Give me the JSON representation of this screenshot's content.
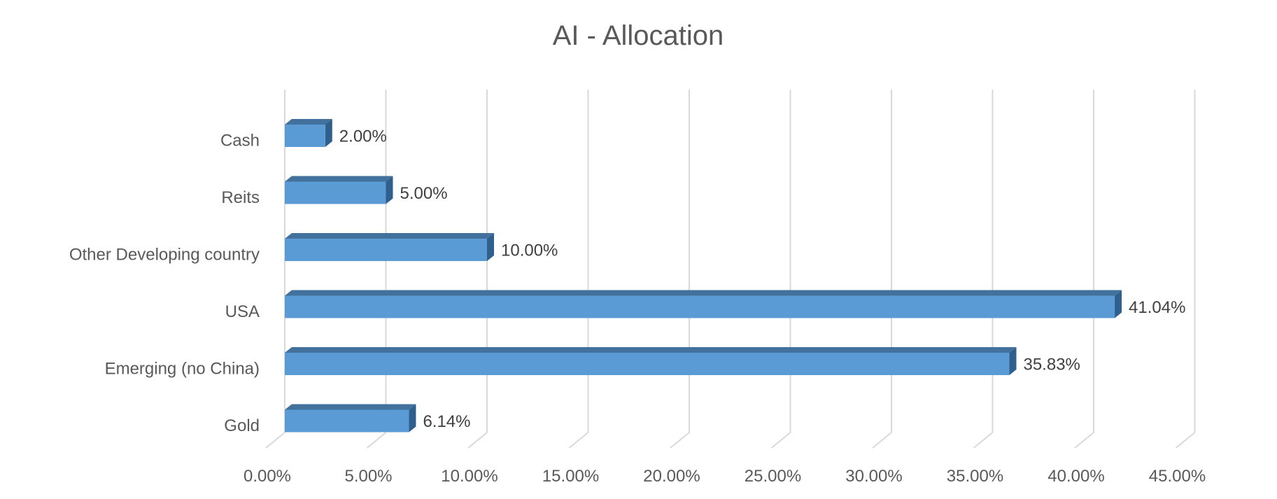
{
  "chart_data": {
    "type": "bar",
    "orientation": "horizontal",
    "style": "3d-clustered-bar",
    "title": "AI - Allocation",
    "categories": [
      "Cash",
      "Reits",
      "Other Developing country",
      "USA",
      "Emerging (no China)",
      "Gold"
    ],
    "values": [
      2.0,
      5.0,
      10.0,
      41.04,
      35.83,
      6.14
    ],
    "value_labels": [
      "2.00%",
      "5.00%",
      "10.00%",
      "41.04%",
      "35.83%",
      "6.14%"
    ],
    "x_ticks": [
      0,
      5,
      10,
      15,
      20,
      25,
      30,
      35,
      40,
      45
    ],
    "x_tick_labels": [
      "0.00%",
      "5.00%",
      "10.00%",
      "15.00%",
      "20.00%",
      "25.00%",
      "30.00%",
      "35.00%",
      "40.00%",
      "45.00%"
    ],
    "xlim": [
      0,
      45
    ],
    "xlabel": "",
    "ylabel": "",
    "grid": true,
    "legend": "none",
    "colors": {
      "bar_front": "#5B9BD5",
      "bar_top": "#41719C",
      "bar_side": "#2F5F8C",
      "grid": "#D9D9D9",
      "title": "#595959",
      "axis_text": "#595959",
      "data_label": "#404040"
    }
  }
}
